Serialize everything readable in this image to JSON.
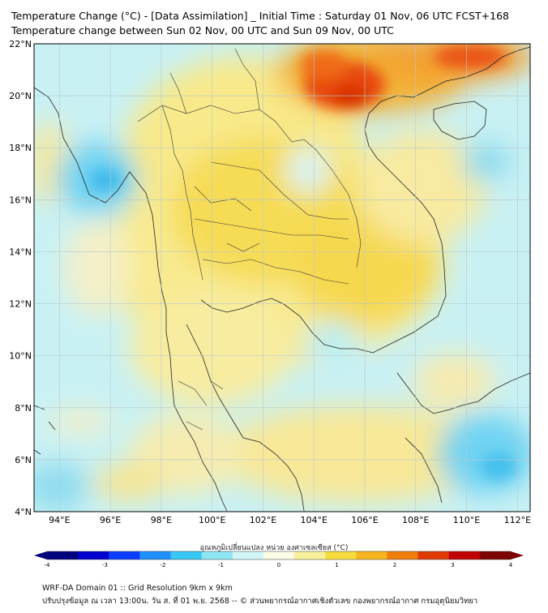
{
  "header": {
    "title": "Temperature Change (°C) - [Data Assimilation] _ Initial Time : Saturday 01 Nov, 06 UTC FCST+168",
    "subtitle": "Temperature change between Sun 02 Nov, 00 UTC and Sun 09 Nov, 00 UTC"
  },
  "map": {
    "lat_range": [
      4,
      22
    ],
    "lon_range": [
      93,
      112.5
    ],
    "lat_ticks": [
      "4°N",
      "6°N",
      "8°N",
      "10°N",
      "12°N",
      "14°N",
      "16°N",
      "18°N",
      "20°N",
      "22°N"
    ],
    "lon_ticks": [
      "94°E",
      "96°E",
      "98°E",
      "100°E",
      "102°E",
      "104°E",
      "106°E",
      "108°E",
      "110°E",
      "112°E"
    ],
    "lat_values": [
      4,
      6,
      8,
      10,
      12,
      14,
      16,
      18,
      20,
      22
    ],
    "lon_values": [
      94,
      96,
      98,
      100,
      102,
      104,
      106,
      108,
      110,
      112
    ],
    "gridlines": true
  },
  "colorbar": {
    "label": "อุณหภูมิเปลี่ยนแปลง หน่วย องศาเซลเซียส (°C)",
    "min": -4,
    "max": 4,
    "tick_labels": [
      "-4",
      "-3",
      "-2",
      "-1",
      "0",
      "1",
      "2",
      "3",
      "4"
    ],
    "tick_values": [
      -4,
      -3,
      -2,
      -1,
      0,
      1,
      2,
      3,
      4
    ],
    "colors": [
      "#00007f",
      "#0000d0",
      "#0a3cff",
      "#1e90ff",
      "#38c8f5",
      "#8ee6f5",
      "#d2f6f6",
      "#fbfbe6",
      "#f8f09a",
      "#f6dc3c",
      "#f6b41e",
      "#f07d0a",
      "#e03a00",
      "#c00000",
      "#7f0000"
    ]
  },
  "footer": {
    "line1": "WRF-DA Domain 01 :: Grid Resolution 9km x 9km",
    "line2": "ปรับปรุงข้อมูล ณ เวลา 13:00น. วัน ส. ที่ 01 พ.ย. 2568 -- © ส่วนพยากรณ์อากาศเชิงตัวเลข กองพยากรณ์อากาศ กรมอุตุนิยมวิทยา"
  }
}
